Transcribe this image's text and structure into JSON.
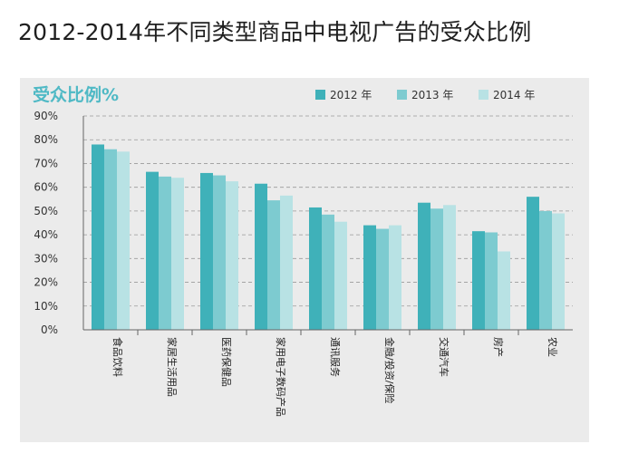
{
  "page": {
    "title": "2012-2014年不同类型商品中电视广告的受众比例"
  },
  "colors": {
    "panel_bg": "#ebebeb",
    "accent_text": "#4fb9c5",
    "series_2012": "#3fb1b9",
    "series_2013": "#7dcbd0",
    "series_2014": "#b8e2e4",
    "grid": "#9a9a9a"
  },
  "chart_data": {
    "type": "bar",
    "title": "2012-2014年不同类型商品中电视广告的受众比例",
    "ylabel": "受众比例%",
    "xlabel": "",
    "ylim": [
      0,
      90
    ],
    "yticks": [
      "0%",
      "10%",
      "20%",
      "30%",
      "40%",
      "50%",
      "60%",
      "70%",
      "80%",
      "90%"
    ],
    "ytick_values": [
      0,
      10,
      20,
      30,
      40,
      50,
      60,
      70,
      80,
      90
    ],
    "grid": true,
    "legend_position": "top-right",
    "categories": [
      "食品饮料",
      "家居生活用品",
      "医药保健品",
      "家用电子数码产品",
      "通讯服务",
      "金融/投资/保险",
      "交通汽车",
      "房产",
      "农业"
    ],
    "series": [
      {
        "name": "2012 年",
        "values": [
          78,
          66.5,
          66,
          61.5,
          51.5,
          44,
          53.5,
          41.5,
          56
        ],
        "color": "#3fb1b9"
      },
      {
        "name": "2013 年",
        "values": [
          76,
          64.5,
          65,
          54.5,
          48.5,
          42.5,
          51,
          41,
          50
        ],
        "color": "#7dcbd0"
      },
      {
        "name": "2014 年",
        "values": [
          75,
          64,
          62.5,
          56.5,
          45.5,
          44,
          52.5,
          33,
          49
        ],
        "color": "#b8e2e4"
      }
    ]
  }
}
